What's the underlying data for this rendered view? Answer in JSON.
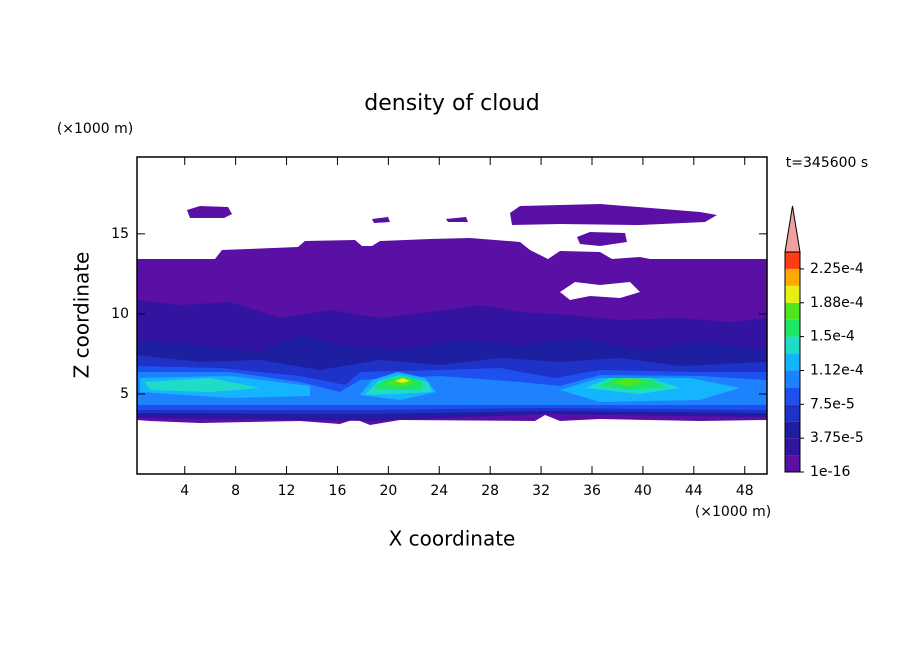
{
  "chart_data": {
    "type": "contour",
    "title": "density of cloud",
    "x_label": "X coordinate",
    "y_label": "Z coordinate",
    "x_unit": "(×1000 m)",
    "y_unit": "(×1000 m)",
    "annotation": "t=345600 s",
    "xlim": [
      0.25,
      49.75
    ],
    "ylim": [
      0,
      19.8
    ],
    "xticks": [
      4,
      8,
      12,
      16,
      20,
      24,
      28,
      32,
      36,
      40,
      44,
      48
    ],
    "yticks": [
      5,
      10,
      15
    ],
    "colorbar": {
      "lim": [
        1e-16,
        0.00024375
      ],
      "ticks": [
        1e-16,
        {
          "value": 3.75e-05,
          "label": "3.75e-5"
        },
        {
          "value": 7.5e-05,
          "label": "7.5e-5"
        },
        {
          "value": 0.0001125,
          "label": "1.12e-4"
        },
        {
          "value": 0.00015,
          "label": "1.5e-4"
        },
        {
          "value": 0.0001875,
          "label": "1.88e-4"
        },
        {
          "value": 0.000225,
          "label": "2.25e-4"
        }
      ],
      "colors": [
        "#5a0fa5",
        "#3214a0",
        "#1e1ea0",
        "#1e32c8",
        "#1e50f0",
        "#1e82ff",
        "#14b4ff",
        "#1edcc8",
        "#1ee664",
        "#50e61e",
        "#e6f014",
        "#ffaa00",
        "#ff3c14"
      ],
      "extend_color": "#f0a0a0"
    }
  }
}
